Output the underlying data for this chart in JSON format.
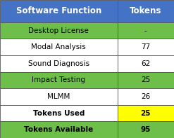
{
  "header": [
    "Software Function",
    "Tokens"
  ],
  "rows": [
    [
      "Desktop License",
      "-"
    ],
    [
      "Modal Analysis",
      "77"
    ],
    [
      "Sound Diagnosis",
      "62"
    ],
    [
      "Impact Testing",
      "25"
    ],
    [
      "MLMM",
      "26"
    ],
    [
      "Tokens Used",
      "25"
    ],
    [
      "Tokens Available",
      "95"
    ]
  ],
  "row_bg_col1": [
    "#6dbf4a",
    "#ffffff",
    "#ffffff",
    "#6dbf4a",
    "#ffffff",
    "#ffffff",
    "#6dbf4a"
  ],
  "row_bg_col2": [
    "#6dbf4a",
    "#ffffff",
    "#ffffff",
    "#6dbf4a",
    "#ffffff",
    "#ffff00",
    "#6dbf4a"
  ],
  "header_bg": "#4472c4",
  "header_fg": "#ffffff",
  "bold_rows": [
    5,
    6
  ],
  "border_color": "#555555",
  "fig_bg": "#ffffff",
  "figsize": [
    2.47,
    1.97
  ],
  "dpi": 100,
  "col_split": 0.675,
  "font_size": 7.5,
  "header_font_size": 8.5
}
